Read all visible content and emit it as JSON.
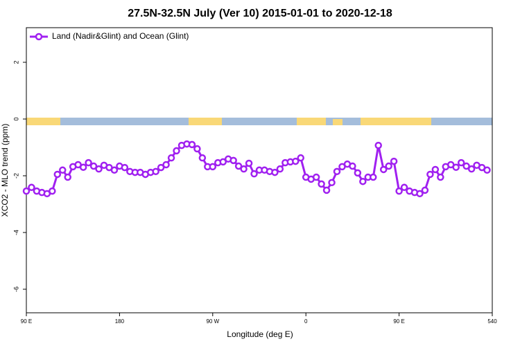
{
  "chart_data": {
    "type": "line",
    "title": "27.5N-32.5N July (Ver 10)   2015-01-01 to 2020-12-18",
    "x_label": "Longitude (deg E)",
    "y_label": "XCO2 - MLO trend (ppm)",
    "x": [
      90,
      95,
      100,
      105,
      110,
      115,
      120,
      125,
      130,
      135,
      140,
      145,
      150,
      155,
      160,
      165,
      170,
      175,
      180,
      185,
      190,
      195,
      200,
      205,
      210,
      215,
      220,
      225,
      230,
      235,
      240,
      245,
      250,
      255,
      260,
      265,
      270,
      275,
      280,
      285,
      290,
      295,
      300,
      305,
      310,
      315,
      320,
      325,
      330,
      335,
      340,
      345,
      350,
      355,
      360,
      365,
      370,
      375,
      380,
      385,
      390,
      395,
      400,
      405,
      410,
      415,
      420,
      425,
      430,
      435,
      440,
      445,
      450,
      455,
      460,
      465,
      470,
      475,
      480,
      485,
      490,
      495,
      500,
      505,
      510,
      515,
      520,
      525,
      530,
      535
    ],
    "series": [
      {
        "name": "Land (Nadir&Glint) and Ocean (Glint)",
        "color": "#a020f0",
        "values": [
          -2.54,
          -2.41,
          -2.54,
          -2.59,
          -2.63,
          -2.54,
          -1.95,
          -1.8,
          -2.05,
          -1.68,
          -1.61,
          -1.7,
          -1.54,
          -1.66,
          -1.76,
          -1.63,
          -1.71,
          -1.8,
          -1.66,
          -1.71,
          -1.85,
          -1.88,
          -1.88,
          -1.95,
          -1.88,
          -1.85,
          -1.71,
          -1.61,
          -1.37,
          -1.12,
          -0.93,
          -0.88,
          -0.9,
          -1.05,
          -1.37,
          -1.68,
          -1.68,
          -1.54,
          -1.51,
          -1.41,
          -1.46,
          -1.66,
          -1.76,
          -1.56,
          -1.93,
          -1.8,
          -1.8,
          -1.85,
          -1.88,
          -1.76,
          -1.54,
          -1.51,
          -1.49,
          -1.37,
          -2.05,
          -2.12,
          -2.05,
          -2.29,
          -2.51,
          -2.24,
          -1.85,
          -1.68,
          -1.59,
          -1.66,
          -1.9,
          -2.2,
          -2.05,
          -2.05,
          -0.93,
          -1.78,
          -1.66,
          -1.49,
          -2.54,
          -2.41,
          -2.54,
          -2.59,
          -2.63,
          -2.51,
          -1.95,
          -1.78,
          -2.05,
          -1.68,
          -1.61,
          -1.7,
          -1.54,
          -1.66,
          -1.76,
          -1.63,
          -1.71,
          -1.8
        ]
      }
    ],
    "xlim": [
      90,
      540
    ],
    "xticks": [
      {
        "value": 90,
        "label": "90 E"
      },
      180,
      {
        "value": 270,
        "label": "90 W"
      },
      {
        "value": 360,
        "label": "0"
      },
      {
        "value": 450,
        "label": "90 E"
      },
      540
    ],
    "ylim": [
      -6.83,
      3.22
    ],
    "yticks": [
      -6,
      -4,
      -2,
      0,
      2
    ],
    "legend": "top-left"
  }
}
